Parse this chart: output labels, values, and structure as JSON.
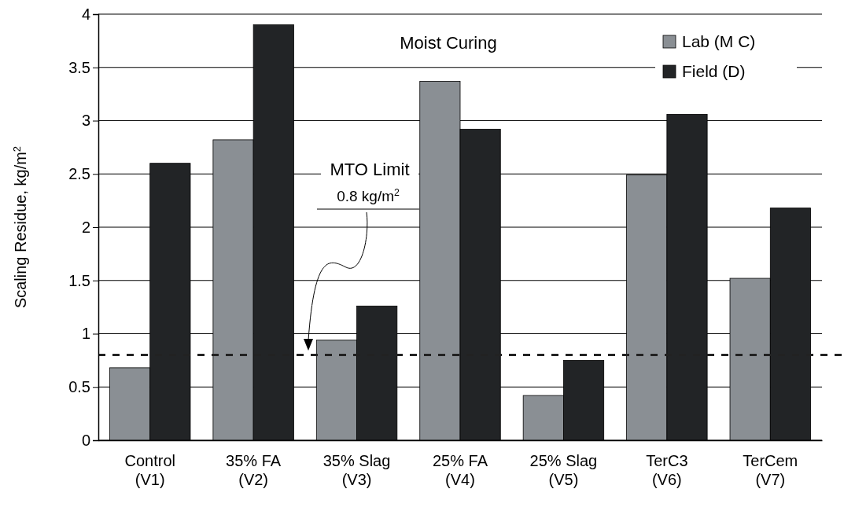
{
  "chart_data": {
    "type": "bar",
    "ylabel": "Scaling Residue, kg/m$^{2}$",
    "categories": [
      "Control\n(V1)",
      "35% FA\n(V2)",
      "35% Slag\n(V3)",
      "25% FA\n(V4)",
      "25% Slag\n(V5)",
      "TerC3\n(V6)",
      "TerCem\n(V7)"
    ],
    "series": [
      {
        "name": "Lab (M C)",
        "color": "#8a8f94",
        "values": [
          0.68,
          2.82,
          0.94,
          3.37,
          0.42,
          2.49,
          1.52
        ]
      },
      {
        "name": "Field (D)",
        "color": "#222426",
        "values": [
          2.6,
          3.9,
          1.26,
          2.92,
          0.75,
          3.06,
          2.18
        ]
      }
    ],
    "ylim": [
      0,
      4
    ],
    "yticks": [
      0,
      0.5,
      1,
      1.5,
      2,
      2.5,
      3,
      3.5,
      4
    ],
    "grid": "y",
    "legend": "top right",
    "ref_lines": [
      {
        "axis": "y",
        "value": 0.8,
        "color": "#222222",
        "line_style": "dashed"
      }
    ],
    "annotations": [
      "Moist Curing",
      "MTO Limit",
      "0.8 kg/m$^{2}$"
    ]
  }
}
